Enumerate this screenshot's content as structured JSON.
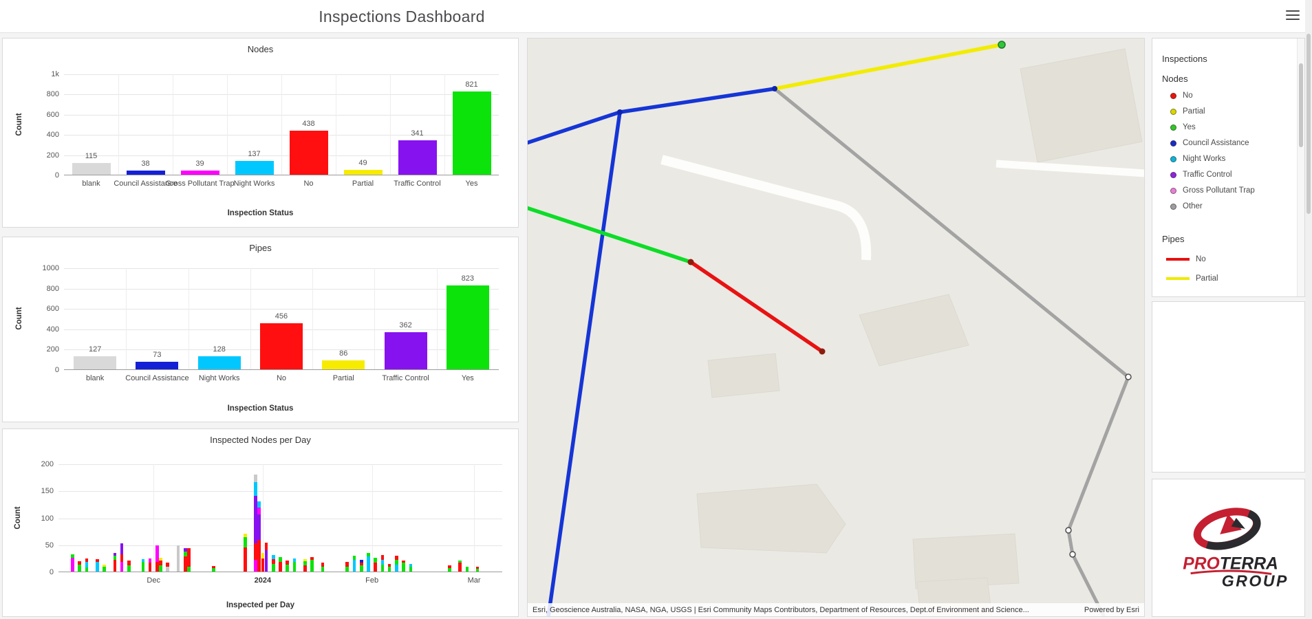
{
  "header": {
    "title": "Inspections Dashboard"
  },
  "palette": {
    "blank": "#d9d9d9",
    "council": "#1420d6",
    "gpt": "#ff00ff",
    "night": "#00c8ff",
    "no": "#ff0f0f",
    "partial": "#f7ec00",
    "traffic": "#8712f0",
    "yes": "#0be30b",
    "other": "#c9c9c9"
  },
  "chart_data": [
    {
      "id": "nodes",
      "type": "bar",
      "title": "Nodes",
      "xlabel": "Inspection Status",
      "ylabel": "Count",
      "ymax": 1000,
      "yticks": [
        {
          "v": 0,
          "label": "0"
        },
        {
          "v": 200,
          "label": "200"
        },
        {
          "v": 400,
          "label": "400"
        },
        {
          "v": 600,
          "label": "600"
        },
        {
          "v": 800,
          "label": "800"
        },
        {
          "v": 1000,
          "label": "1k"
        }
      ],
      "categories": [
        "blank",
        "Council Assistance",
        "Gross Pollutant Trap",
        "Night Works",
        "No",
        "Partial",
        "Traffic Control",
        "Yes"
      ],
      "values": [
        115,
        38,
        39,
        137,
        438,
        49,
        341,
        821
      ],
      "colors": [
        "blank",
        "council",
        "gpt",
        "night",
        "no",
        "partial",
        "traffic",
        "yes"
      ]
    },
    {
      "id": "pipes",
      "type": "bar",
      "title": "Pipes",
      "xlabel": "Inspection Status",
      "ylabel": "Count",
      "ymax": 1000,
      "yticks": [
        {
          "v": 0,
          "label": "0"
        },
        {
          "v": 200,
          "label": "200"
        },
        {
          "v": 400,
          "label": "400"
        },
        {
          "v": 600,
          "label": "600"
        },
        {
          "v": 800,
          "label": "800"
        },
        {
          "v": 1000,
          "label": "1000"
        }
      ],
      "categories": [
        "blank",
        "Council Assistance",
        "Night Works",
        "No",
        "Partial",
        "Traffic Control",
        "Yes"
      ],
      "values": [
        127,
        73,
        128,
        456,
        86,
        362,
        823
      ],
      "colors": [
        "blank",
        "council",
        "night",
        "no",
        "partial",
        "traffic",
        "yes"
      ]
    },
    {
      "id": "days",
      "type": "stacked-bar",
      "title": "Inspected Nodes per Day",
      "xlabel": "Inspected per Day",
      "ylabel": "Count",
      "ymax": 200,
      "yticks": [
        {
          "v": 0,
          "label": "0"
        },
        {
          "v": 50,
          "label": "50"
        },
        {
          "v": 100,
          "label": "100"
        },
        {
          "v": 150,
          "label": "150"
        },
        {
          "v": 200,
          "label": "200"
        }
      ],
      "xticks": [
        {
          "label": "Dec",
          "d": 27
        },
        {
          "label": "2024",
          "d": 58,
          "bold": true
        },
        {
          "label": "Feb",
          "d": 89
        },
        {
          "label": "Mar",
          "d": 118
        }
      ],
      "bars": [
        [
          4,
          [
            [
              "gpt",
              26
            ],
            [
              "yes",
              6
            ]
          ]
        ],
        [
          6,
          [
            [
              "yes",
              13
            ],
            [
              "no",
              6
            ]
          ]
        ],
        [
          8,
          [
            [
              "yes",
              8
            ],
            [
              "night",
              10
            ],
            [
              "no",
              6
            ]
          ]
        ],
        [
          11,
          [
            [
              "night",
              18
            ],
            [
              "no",
              5
            ]
          ]
        ],
        [
          13,
          [
            [
              "yes",
              9
            ],
            [
              "partial",
              4
            ]
          ]
        ],
        [
          16,
          [
            [
              "no",
              22
            ],
            [
              "yes",
              7
            ],
            [
              "traffic",
              6
            ]
          ]
        ],
        [
          18,
          [
            [
              "gpt",
              18
            ],
            [
              "no",
              14
            ],
            [
              "traffic",
              20
            ]
          ]
        ],
        [
          20,
          [
            [
              "yes",
              12
            ],
            [
              "no",
              8
            ]
          ]
        ],
        [
          24,
          [
            [
              "yes",
              18
            ],
            [
              "night",
              5
            ]
          ]
        ],
        [
          26,
          [
            [
              "no",
              16
            ],
            [
              "gpt",
              8
            ]
          ]
        ],
        [
          28,
          [
            [
              "no",
              18
            ],
            [
              "gpt",
              30
            ]
          ]
        ],
        [
          29,
          [
            [
              "yes",
              12
            ],
            [
              "no",
              9
            ],
            [
              "partial",
              5
            ]
          ]
        ],
        [
          31,
          [
            [
              "other",
              9
            ],
            [
              "no",
              7
            ]
          ]
        ],
        [
          34,
          [
            [
              "other",
              48
            ]
          ]
        ],
        [
          36,
          [
            [
              "no",
              28
            ],
            [
              "yes",
              9
            ],
            [
              "traffic",
              6
            ]
          ]
        ],
        [
          37,
          [
            [
              "yes",
              9
            ],
            [
              "no",
              34
            ]
          ]
        ],
        [
          44,
          [
            [
              "yes",
              6
            ],
            [
              "no",
              4
            ]
          ]
        ],
        [
          53,
          [
            [
              "no",
              44
            ],
            [
              "yes",
              20
            ],
            [
              "partial",
              6
            ]
          ]
        ],
        [
          56,
          [
            [
              "gpt",
              22
            ],
            [
              "no",
              30
            ],
            [
              "traffic",
              88
            ],
            [
              "night",
              25
            ],
            [
              "other",
              15
            ]
          ]
        ],
        [
          57,
          [
            [
              "no",
              58
            ],
            [
              "traffic",
              48
            ],
            [
              "gpt",
              12
            ],
            [
              "night",
              12
            ]
          ]
        ],
        [
          58,
          [
            [
              "no",
              24
            ],
            [
              "partial",
              10
            ]
          ]
        ],
        [
          59,
          [
            [
              "traffic",
              40
            ],
            [
              "no",
              14
            ]
          ]
        ],
        [
          61,
          [
            [
              "yes",
              14
            ],
            [
              "no",
              9
            ],
            [
              "night",
              7
            ]
          ]
        ],
        [
          63,
          [
            [
              "no",
              18
            ],
            [
              "yes",
              9
            ]
          ]
        ],
        [
          65,
          [
            [
              "yes",
              13
            ],
            [
              "no",
              7
            ]
          ]
        ],
        [
          67,
          [
            [
              "yes",
              18
            ],
            [
              "night",
              6
            ]
          ]
        ],
        [
          70,
          [
            [
              "no",
              11
            ],
            [
              "yes",
              8
            ],
            [
              "partial",
              4
            ]
          ]
        ],
        [
          72,
          [
            [
              "yes",
              22
            ],
            [
              "no",
              5
            ]
          ]
        ],
        [
          75,
          [
            [
              "yes",
              9
            ],
            [
              "no",
              7
            ]
          ]
        ],
        [
          82,
          [
            [
              "yes",
              9
            ],
            [
              "no",
              9
            ]
          ]
        ],
        [
          84,
          [
            [
              "night",
              22
            ],
            [
              "yes",
              7
            ]
          ]
        ],
        [
          86,
          [
            [
              "yes",
              11
            ],
            [
              "no",
              6
            ],
            [
              "council",
              5
            ]
          ]
        ],
        [
          88,
          [
            [
              "night",
              28
            ],
            [
              "yes",
              7
            ]
          ]
        ],
        [
          90,
          [
            [
              "no",
              17
            ],
            [
              "yes",
              9
            ]
          ]
        ],
        [
          92,
          [
            [
              "yes",
              13
            ],
            [
              "night",
              9
            ],
            [
              "no",
              9
            ]
          ]
        ],
        [
          94,
          [
            [
              "yes",
              9
            ],
            [
              "no",
              5
            ]
          ]
        ],
        [
          96,
          [
            [
              "night",
              13
            ],
            [
              "yes",
              9
            ],
            [
              "no",
              7
            ]
          ]
        ],
        [
          98,
          [
            [
              "yes",
              16
            ],
            [
              "no",
              5
            ]
          ]
        ],
        [
          100,
          [
            [
              "yes",
              9
            ],
            [
              "night",
              5
            ]
          ]
        ],
        [
          111,
          [
            [
              "yes",
              7
            ],
            [
              "no",
              4
            ]
          ]
        ],
        [
          114,
          [
            [
              "no",
              16
            ],
            [
              "yes",
              4
            ]
          ]
        ],
        [
          116,
          [
            [
              "yes",
              9
            ]
          ]
        ],
        [
          119,
          [
            [
              "yes",
              5
            ],
            [
              "no",
              4
            ]
          ]
        ]
      ]
    }
  ],
  "legend": {
    "title": "Inspections",
    "nodes_title": "Nodes",
    "nodes_items": [
      {
        "label": "No",
        "color": "#e8160c"
      },
      {
        "label": "Partial",
        "color": "#d8d800"
      },
      {
        "label": "Yes",
        "color": "#35c428"
      },
      {
        "label": "Council Assistance",
        "color": "#1b2bc4"
      },
      {
        "label": "Night Works",
        "color": "#0fb3d6"
      },
      {
        "label": "Traffic Control",
        "color": "#8e24dd"
      },
      {
        "label": "Gross Pollutant Trap",
        "color": "#e87fd3"
      },
      {
        "label": "Other",
        "color": "#9e9e9e"
      }
    ],
    "pipes_title": "Pipes",
    "pipes_items": [
      {
        "label": "No",
        "color": "#e81010"
      },
      {
        "label": "Partial",
        "color": "#f0ea00"
      }
    ]
  },
  "map": {
    "attribution": "Esri, Geoscience Australia, NASA, NGA, USGS | Esri Community Maps Contributors, Department of Resources, Dept.of Environment and Science...",
    "powered_by": "Powered by Esri"
  },
  "logo": {
    "part1": "PRO",
    "part2": "TERRA",
    "line2": "GROUP"
  }
}
